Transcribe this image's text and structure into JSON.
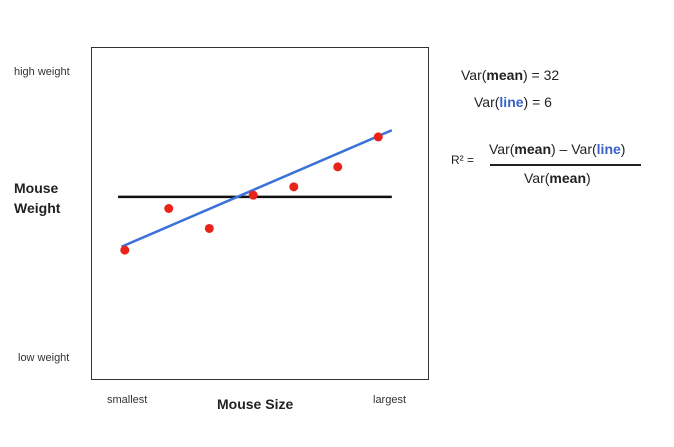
{
  "chart_data": {
    "type": "scatter",
    "title": "",
    "xlabel": "Mouse Size",
    "ylabel_line1": "Mouse",
    "ylabel_line2": "Weight",
    "x_tick_min": "smallest",
    "x_tick_max": "largest",
    "y_tick_max": "high weight",
    "y_tick_min": "low weight",
    "xlim": [
      0,
      10
    ],
    "ylim": [
      0,
      10
    ],
    "grid": false,
    "points": [
      {
        "x": 1.0,
        "y": 3.9
      },
      {
        "x": 2.3,
        "y": 5.15
      },
      {
        "x": 3.5,
        "y": 4.55
      },
      {
        "x": 4.8,
        "y": 5.55
      },
      {
        "x": 6.0,
        "y": 5.8
      },
      {
        "x": 7.3,
        "y": 6.4
      },
      {
        "x": 8.5,
        "y": 7.3
      }
    ],
    "mean_line": {
      "x1": 0.8,
      "x2": 8.9,
      "y": 5.5
    },
    "fit_line": {
      "x1": 0.9,
      "y1": 4.0,
      "x2": 8.9,
      "y2": 7.5
    },
    "point_color": "#e8231a",
    "mean_line_color": "#111111",
    "fit_line_color": "#3a72d9"
  },
  "annotations": {
    "var_mean": {
      "prefix": "Var(",
      "bold": "mean",
      "suffix": ") = 32"
    },
    "var_line": {
      "prefix": "Var(",
      "bold": "line",
      "suffix": ") = 6"
    },
    "r2_label": "R² =",
    "numerator": {
      "a_prefix": "Var(",
      "a_bold": "mean",
      "a_suffix": ")",
      "minus": " – ",
      "b_prefix": "Var(",
      "b_bold": "line",
      "b_suffix": ")"
    },
    "denominator": {
      "prefix": "Var(",
      "bold": "mean",
      "suffix": ")"
    }
  }
}
